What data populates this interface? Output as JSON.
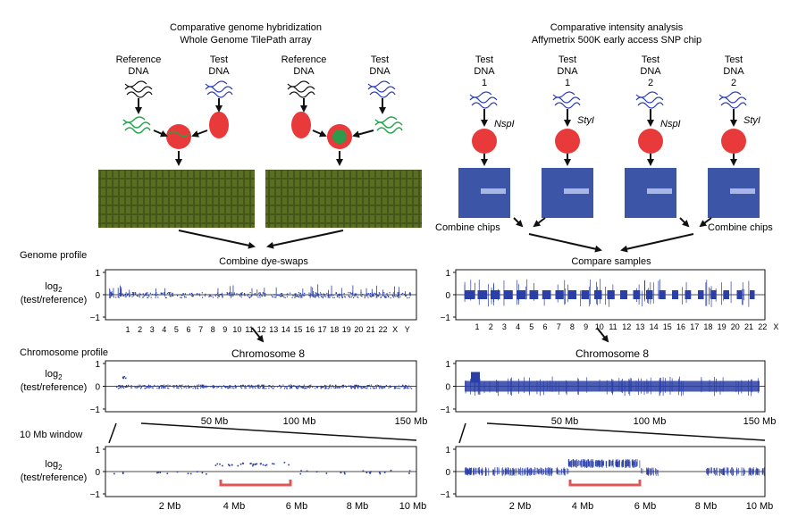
{
  "left": {
    "title_line1": "Comparative genome hybridization",
    "title_line2": "Whole Genome TilePath array",
    "labels": [
      {
        "line1": "Reference",
        "line2": "DNA"
      },
      {
        "line1": "Test",
        "line2": "DNA"
      },
      {
        "line1": "Reference",
        "line2": "DNA"
      },
      {
        "line1": "Test",
        "line2": "DNA"
      }
    ],
    "combine_label": "Combine dye-swaps",
    "genome_ticks": [
      "1",
      "2",
      "3",
      "4",
      "5",
      "6",
      "7",
      "8",
      "9",
      "10",
      "11",
      "12",
      "13",
      "14",
      "15",
      "16",
      "17",
      "18",
      "19",
      "20",
      "21",
      "22",
      "X",
      "Y"
    ],
    "chr_label": "Chromosome 8",
    "chr_ticks": [
      "50 Mb",
      "100 Mb",
      "150 Mb"
    ],
    "window_ticks": [
      "2 Mb",
      "4 Mb",
      "6 Mb",
      "8 Mb",
      "10 Mb"
    ]
  },
  "right": {
    "title_line1": "Comparative intensity analysis",
    "title_line2": "Affymetrix 500K early access SNP chip",
    "labels": [
      {
        "line1": "Test",
        "line2": "DNA",
        "line3": "1",
        "enzyme": "NspI"
      },
      {
        "line1": "Test",
        "line2": "DNA",
        "line3": "1",
        "enzyme": "StyI"
      },
      {
        "line1": "Test",
        "line2": "DNA",
        "line3": "2",
        "enzyme": "NspI"
      },
      {
        "line1": "Test",
        "line2": "DNA",
        "line3": "2",
        "enzyme": "StyI"
      }
    ],
    "combine_chips_left": "Combine chips",
    "combine_chips_right": "Combine chips",
    "compare_label": "Compare samples",
    "genome_ticks": [
      "1",
      "2",
      "3",
      "4",
      "5",
      "6",
      "7",
      "8",
      "9",
      "10",
      "11",
      "12",
      "13",
      "14",
      "15",
      "16",
      "17",
      "18",
      "19",
      "20",
      "21",
      "22",
      "X"
    ],
    "chr_label": "Chromosome 8",
    "chr_ticks": [
      "50 Mb",
      "100 Mb",
      "150 Mb"
    ],
    "window_ticks": [
      "2 Mb",
      "4 Mb",
      "6 Mb",
      "8 Mb",
      "10 Mb"
    ]
  },
  "rows": {
    "genome_profile": "Genome profile",
    "chromosome_profile": "Chromosome profile",
    "window": "10 Mb window"
  },
  "axis": {
    "log_label": "log",
    "log_sub": "2",
    "ratio_label": "(test/reference)",
    "y_ticks": [
      "1",
      "0",
      "−1"
    ]
  },
  "colors": {
    "data": "#2b3fa8",
    "red_dna": "#e83a3a",
    "green_dna": "#1fa64a",
    "blue_dna": "#2a3cb5",
    "bracket": "#e05555",
    "array_bg": "#4a5a18",
    "chip_bg": "#3d55a6"
  }
}
